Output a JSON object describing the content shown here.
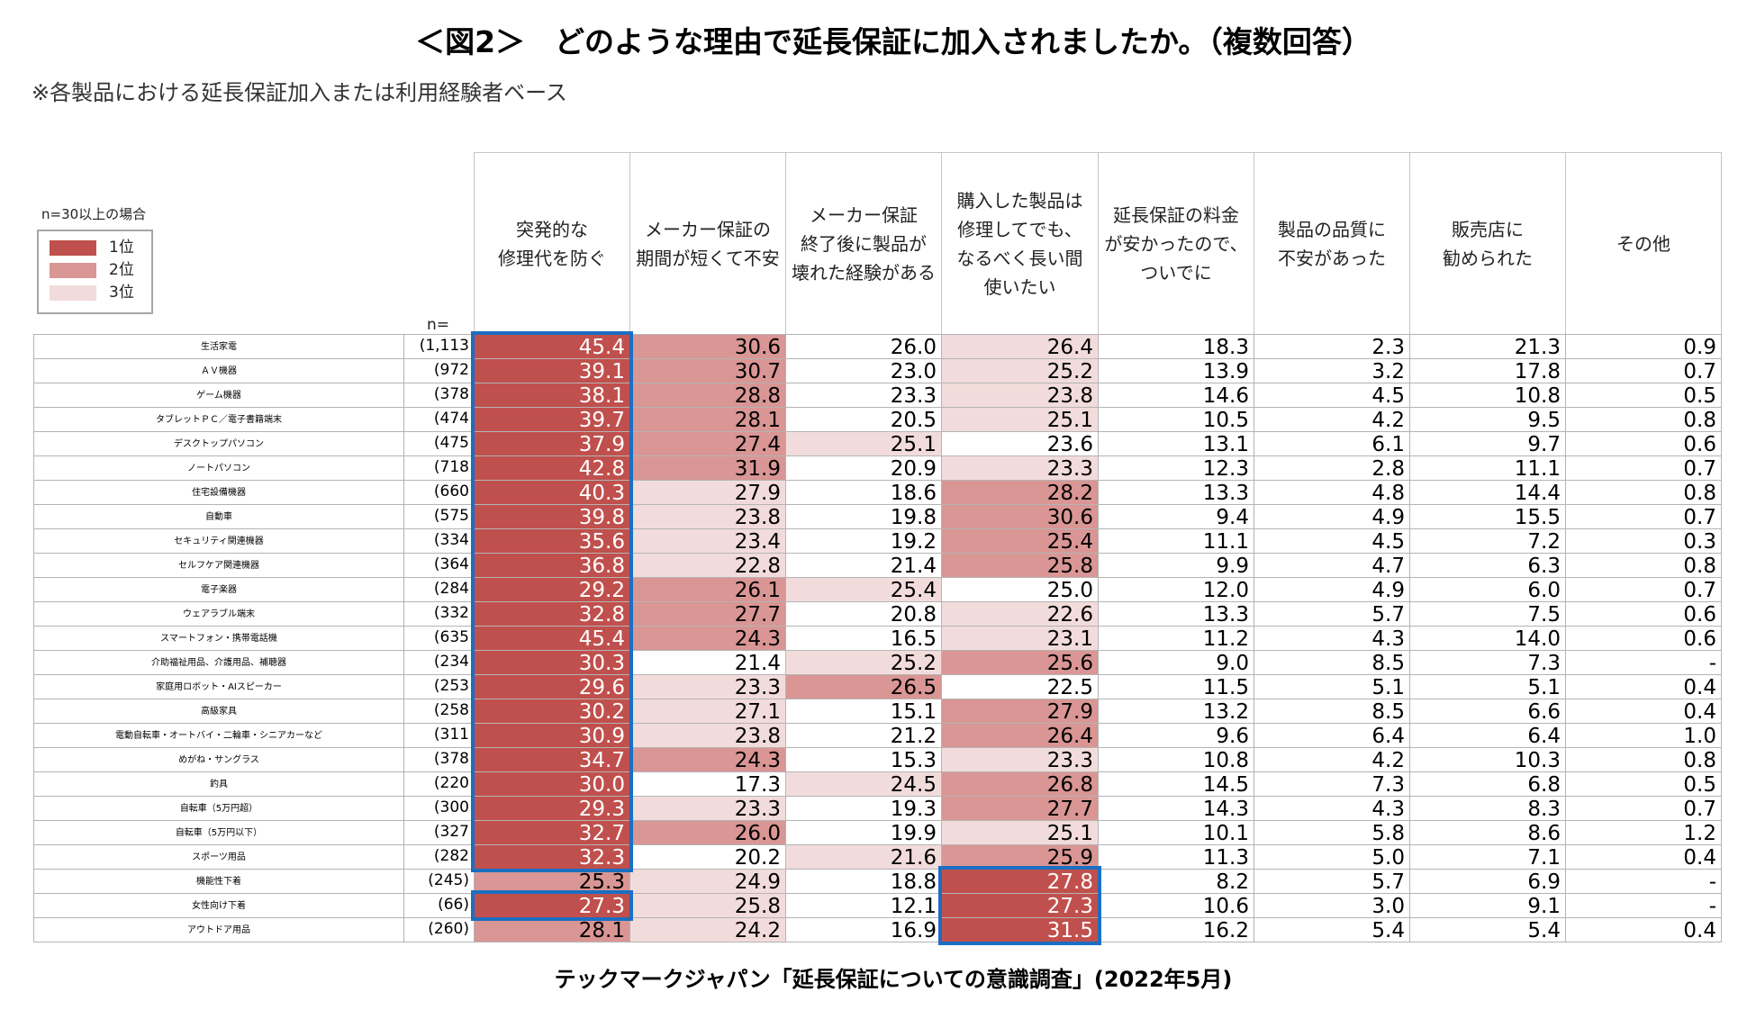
{
  "colors": {
    "rank1": "#c0504d",
    "rank2": "#d99694",
    "rank3": "#f2dcdb",
    "highlight": "#1b6ec2"
  },
  "chart_data": {
    "type": "table",
    "title": "＜図2＞　どのような理由で延長保証に加入されましたか。（複数回答）",
    "subtitle": "※各製品における延長保証加入または利用経験者ベース",
    "legend": {
      "note": "n=30以上の場合",
      "items": [
        {
          "rank": 1,
          "label": "1位"
        },
        {
          "rank": 2,
          "label": "2位"
        },
        {
          "rank": 3,
          "label": "3位"
        }
      ]
    },
    "n_label": "n=",
    "columns": [
      {
        "lines": [
          "突発的な",
          "修理代を防ぐ"
        ]
      },
      {
        "lines": [
          "メーカー保証の",
          "期間が短くて不安"
        ]
      },
      {
        "lines": [
          "メーカー保証",
          "終了後に製品が",
          "壊れた経験がある"
        ]
      },
      {
        "lines": [
          "購入した製品は",
          "修理してでも、",
          "なるべく長い間",
          "使いたい"
        ]
      },
      {
        "lines": [
          "延長保証の料金",
          "が安かったので、",
          "ついでに"
        ]
      },
      {
        "lines": [
          "製品の品質に",
          "不安があった"
        ]
      },
      {
        "lines": [
          "販売店に",
          "勧められた"
        ]
      },
      {
        "lines": [
          "その他"
        ]
      }
    ],
    "rows": [
      {
        "label": "生活家電",
        "n": "(1,113",
        "values": [
          "45.4",
          "30.6",
          "26.0",
          "26.4",
          "18.3",
          "2.3",
          "21.3",
          "0.9"
        ],
        "ranks": [
          1,
          2,
          0,
          3,
          0,
          0,
          0,
          0
        ]
      },
      {
        "label": "ＡＶ機器",
        "n": "(972",
        "values": [
          "39.1",
          "30.7",
          "23.0",
          "25.2",
          "13.9",
          "3.2",
          "17.8",
          "0.7"
        ],
        "ranks": [
          1,
          2,
          0,
          3,
          0,
          0,
          0,
          0
        ]
      },
      {
        "label": "ゲーム機器",
        "n": "(378",
        "values": [
          "38.1",
          "28.8",
          "23.3",
          "23.8",
          "14.6",
          "4.5",
          "10.8",
          "0.5"
        ],
        "ranks": [
          1,
          2,
          0,
          3,
          0,
          0,
          0,
          0
        ]
      },
      {
        "label": "タブレットＰＣ／電子書籍端末",
        "n": "(474",
        "values": [
          "39.7",
          "28.1",
          "20.5",
          "25.1",
          "10.5",
          "4.2",
          "9.5",
          "0.8"
        ],
        "ranks": [
          1,
          2,
          0,
          3,
          0,
          0,
          0,
          0
        ]
      },
      {
        "label": "デスクトップパソコン",
        "n": "(475",
        "values": [
          "37.9",
          "27.4",
          "25.1",
          "23.6",
          "13.1",
          "6.1",
          "9.7",
          "0.6"
        ],
        "ranks": [
          1,
          2,
          3,
          0,
          0,
          0,
          0,
          0
        ]
      },
      {
        "label": "ノートパソコン",
        "n": "(718",
        "values": [
          "42.8",
          "31.9",
          "20.9",
          "23.3",
          "12.3",
          "2.8",
          "11.1",
          "0.7"
        ],
        "ranks": [
          1,
          2,
          0,
          3,
          0,
          0,
          0,
          0
        ]
      },
      {
        "label": "住宅設備機器",
        "n": "(660",
        "values": [
          "40.3",
          "27.9",
          "18.6",
          "28.2",
          "13.3",
          "4.8",
          "14.4",
          "0.8"
        ],
        "ranks": [
          1,
          3,
          0,
          2,
          0,
          0,
          0,
          0
        ]
      },
      {
        "label": "自動車",
        "n": "(575",
        "values": [
          "39.8",
          "23.8",
          "19.8",
          "30.6",
          "9.4",
          "4.9",
          "15.5",
          "0.7"
        ],
        "ranks": [
          1,
          3,
          0,
          2,
          0,
          0,
          0,
          0
        ]
      },
      {
        "label": "セキュリティ関連機器",
        "n": "(334",
        "values": [
          "35.6",
          "23.4",
          "19.2",
          "25.4",
          "11.1",
          "4.5",
          "7.2",
          "0.3"
        ],
        "ranks": [
          1,
          3,
          0,
          2,
          0,
          0,
          0,
          0
        ]
      },
      {
        "label": "セルフケア関連機器",
        "n": "(364",
        "values": [
          "36.8",
          "22.8",
          "21.4",
          "25.8",
          "9.9",
          "4.7",
          "6.3",
          "0.8"
        ],
        "ranks": [
          1,
          3,
          0,
          2,
          0,
          0,
          0,
          0
        ]
      },
      {
        "label": "電子楽器",
        "n": "(284",
        "values": [
          "29.2",
          "26.1",
          "25.4",
          "25.0",
          "12.0",
          "4.9",
          "6.0",
          "0.7"
        ],
        "ranks": [
          1,
          2,
          3,
          0,
          0,
          0,
          0,
          0
        ]
      },
      {
        "label": "ウェアラブル端末",
        "n": "(332",
        "values": [
          "32.8",
          "27.7",
          "20.8",
          "22.6",
          "13.3",
          "5.7",
          "7.5",
          "0.6"
        ],
        "ranks": [
          1,
          2,
          0,
          3,
          0,
          0,
          0,
          0
        ]
      },
      {
        "label": "スマートフォン・携帯電話機",
        "n": "(635",
        "values": [
          "45.4",
          "24.3",
          "16.5",
          "23.1",
          "11.2",
          "4.3",
          "14.0",
          "0.6"
        ],
        "ranks": [
          1,
          2,
          0,
          3,
          0,
          0,
          0,
          0
        ]
      },
      {
        "label": "介助福祉用品、介護用品、補聴器",
        "n": "(234",
        "values": [
          "30.3",
          "21.4",
          "25.2",
          "25.6",
          "9.0",
          "8.5",
          "7.3",
          "-"
        ],
        "ranks": [
          1,
          0,
          3,
          2,
          0,
          0,
          0,
          0
        ]
      },
      {
        "label": "家庭用ロボット・AIスピーカー",
        "n": "(253",
        "values": [
          "29.6",
          "23.3",
          "26.5",
          "22.5",
          "11.5",
          "5.1",
          "5.1",
          "0.4"
        ],
        "ranks": [
          1,
          3,
          2,
          0,
          0,
          0,
          0,
          0
        ]
      },
      {
        "label": "高級家具",
        "n": "(258",
        "values": [
          "30.2",
          "27.1",
          "15.1",
          "27.9",
          "13.2",
          "8.5",
          "6.6",
          "0.4"
        ],
        "ranks": [
          1,
          3,
          0,
          2,
          0,
          0,
          0,
          0
        ]
      },
      {
        "label": "電動自転車・オートバイ・二輪車・シニアカーなど",
        "n": "(311",
        "values": [
          "30.9",
          "23.8",
          "21.2",
          "26.4",
          "9.6",
          "6.4",
          "6.4",
          "1.0"
        ],
        "ranks": [
          1,
          3,
          0,
          2,
          0,
          0,
          0,
          0
        ]
      },
      {
        "label": "めがね・サングラス",
        "n": "(378",
        "values": [
          "34.7",
          "24.3",
          "15.3",
          "23.3",
          "10.8",
          "4.2",
          "10.3",
          "0.8"
        ],
        "ranks": [
          1,
          2,
          0,
          3,
          0,
          0,
          0,
          0
        ]
      },
      {
        "label": "釣具",
        "n": "(220",
        "values": [
          "30.0",
          "17.3",
          "24.5",
          "26.8",
          "14.5",
          "7.3",
          "6.8",
          "0.5"
        ],
        "ranks": [
          1,
          0,
          3,
          2,
          0,
          0,
          0,
          0
        ]
      },
      {
        "label": "自転車（5万円超）",
        "n": "(300",
        "values": [
          "29.3",
          "23.3",
          "19.3",
          "27.7",
          "14.3",
          "4.3",
          "8.3",
          "0.7"
        ],
        "ranks": [
          1,
          3,
          0,
          2,
          0,
          0,
          0,
          0
        ]
      },
      {
        "label": "自転車（5万円以下）",
        "n": "(327",
        "values": [
          "32.7",
          "26.0",
          "19.9",
          "25.1",
          "10.1",
          "5.8",
          "8.6",
          "1.2"
        ],
        "ranks": [
          1,
          2,
          0,
          3,
          0,
          0,
          0,
          0
        ]
      },
      {
        "label": "スポーツ用品",
        "n": "(282",
        "values": [
          "32.3",
          "20.2",
          "21.6",
          "25.9",
          "11.3",
          "5.0",
          "7.1",
          "0.4"
        ],
        "ranks": [
          1,
          0,
          3,
          2,
          0,
          0,
          0,
          0
        ]
      },
      {
        "label": "機能性下着",
        "n": "(245)",
        "values": [
          "25.3",
          "24.9",
          "18.8",
          "27.8",
          "8.2",
          "5.7",
          "6.9",
          "-"
        ],
        "ranks": [
          2,
          3,
          0,
          1,
          0,
          0,
          0,
          0
        ]
      },
      {
        "label": "女性向け下着",
        "n": "(66)",
        "values": [
          "27.3",
          "25.8",
          "12.1",
          "27.3",
          "10.6",
          "3.0",
          "9.1",
          "-"
        ],
        "ranks": [
          1,
          3,
          0,
          1,
          0,
          0,
          0,
          0
        ]
      },
      {
        "label": "アウトドア用品",
        "n": "(260)",
        "values": [
          "28.1",
          "24.2",
          "16.9",
          "31.5",
          "16.2",
          "5.4",
          "5.4",
          "0.4"
        ],
        "ranks": [
          2,
          3,
          0,
          1,
          0,
          0,
          0,
          0
        ]
      }
    ],
    "highlights": [
      {
        "column": 0,
        "first_row": 0,
        "last_row": 21
      },
      {
        "column": 0,
        "first_row": 23,
        "last_row": 23
      },
      {
        "column": 3,
        "first_row": 22,
        "last_row": 24
      }
    ],
    "source": "テックマークジャパン「延長保証についての意識調査」(2022年5月)"
  }
}
